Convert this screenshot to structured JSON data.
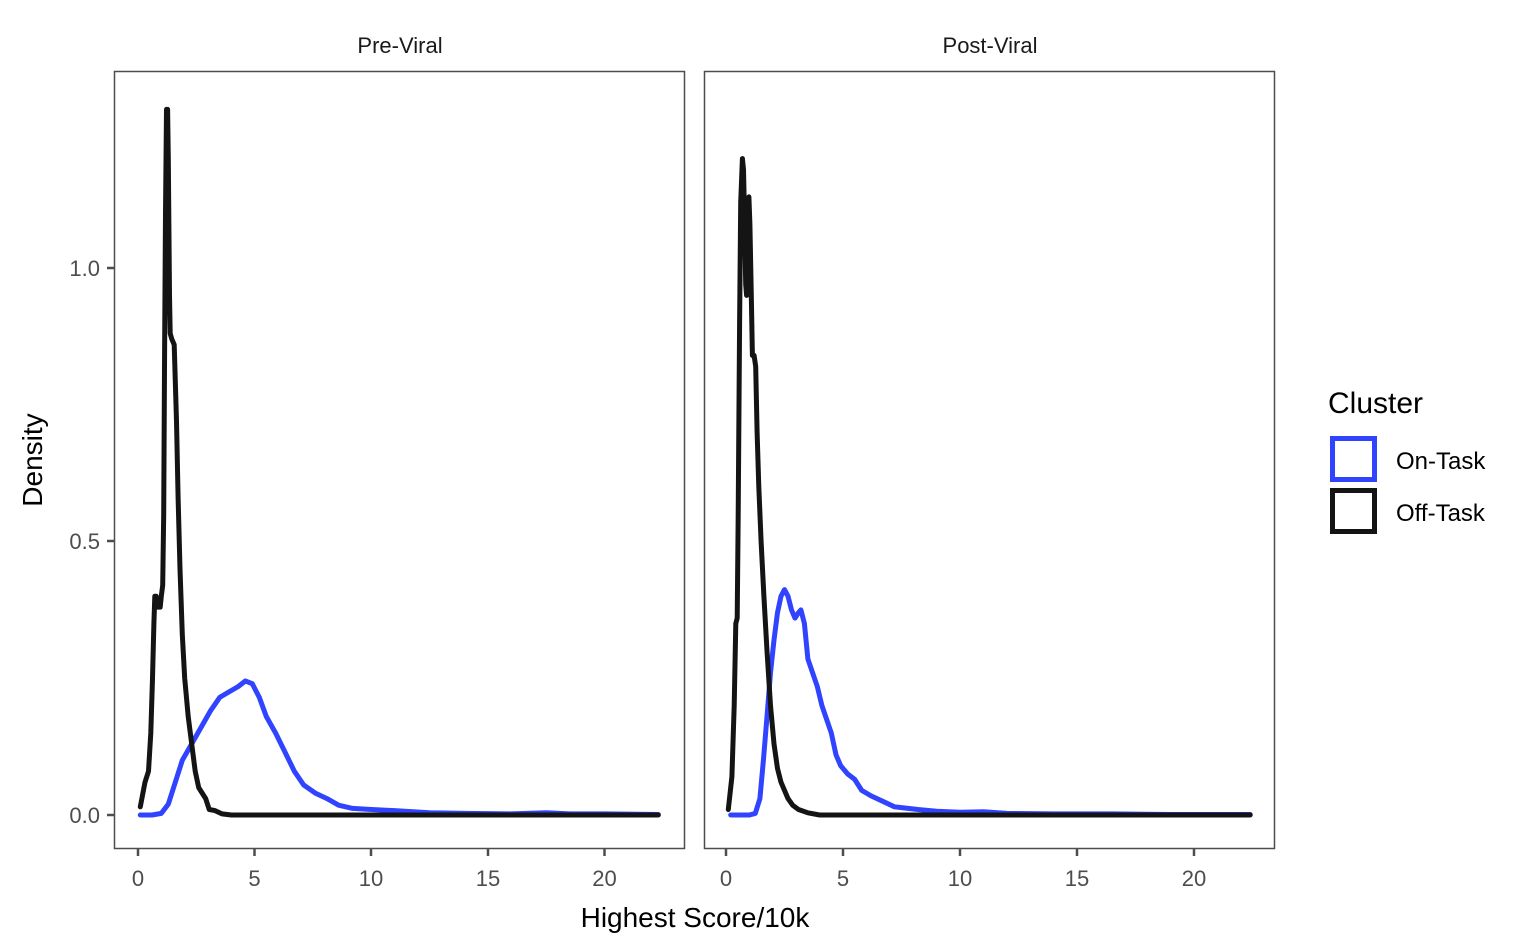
{
  "chart_data": {
    "type": "line",
    "subtype": "density",
    "title": "",
    "xlabel": "Highest Score/10k",
    "ylabel": "Density",
    "xlim": [
      -1,
      23.5
    ],
    "ylim": [
      -0.06,
      1.36
    ],
    "x_ticks": [
      0,
      5,
      10,
      15,
      20
    ],
    "x_tick_labels": [
      "0",
      "5",
      "10",
      "15",
      "20"
    ],
    "y_ticks": [
      0.0,
      0.5,
      1.0
    ],
    "y_tick_labels": [
      "0.0",
      "0.5",
      "1.0"
    ],
    "grid": false,
    "legend": {
      "title": "Cluster",
      "position": "right",
      "entries": [
        {
          "label": "On-Task",
          "color": "#3044ff"
        },
        {
          "label": "Off-Task",
          "color": "#141414"
        }
      ]
    },
    "panels": [
      {
        "label": "Pre-Viral",
        "series": [
          {
            "name": "On-Task",
            "color": "#3044ff",
            "points": [
              [
                0.1,
                0.0
              ],
              [
                0.6,
                0.0
              ],
              [
                1.0,
                0.003
              ],
              [
                1.3,
                0.02
              ],
              [
                1.6,
                0.06
              ],
              [
                1.9,
                0.1
              ],
              [
                2.3,
                0.13
              ],
              [
                2.7,
                0.16
              ],
              [
                3.1,
                0.19
              ],
              [
                3.5,
                0.215
              ],
              [
                3.9,
                0.225
              ],
              [
                4.3,
                0.235
              ],
              [
                4.6,
                0.245
              ],
              [
                4.9,
                0.24
              ],
              [
                5.2,
                0.215
              ],
              [
                5.5,
                0.18
              ],
              [
                5.9,
                0.15
              ],
              [
                6.3,
                0.115
              ],
              [
                6.7,
                0.08
              ],
              [
                7.1,
                0.055
              ],
              [
                7.6,
                0.04
              ],
              [
                8.1,
                0.03
              ],
              [
                8.6,
                0.018
              ],
              [
                9.2,
                0.012
              ],
              [
                10.0,
                0.01
              ],
              [
                11.0,
                0.008
              ],
              [
                12.5,
                0.004
              ],
              [
                14.0,
                0.003
              ],
              [
                16.0,
                0.002
              ],
              [
                17.5,
                0.004
              ],
              [
                18.5,
                0.002
              ],
              [
                20.0,
                0.002
              ],
              [
                22.3,
                0.001
              ]
            ]
          },
          {
            "name": "Off-Task",
            "color": "#141414",
            "points": [
              [
                0.1,
                0.015
              ],
              [
                0.3,
                0.06
              ],
              [
                0.45,
                0.08
              ],
              [
                0.55,
                0.15
              ],
              [
                0.62,
                0.25
              ],
              [
                0.68,
                0.35
              ],
              [
                0.72,
                0.4
              ],
              [
                0.78,
                0.4
              ],
              [
                0.85,
                0.38
              ],
              [
                0.95,
                0.38
              ],
              [
                1.0,
                0.4
              ],
              [
                1.06,
                0.42
              ],
              [
                1.1,
                0.55
              ],
              [
                1.14,
                0.85
              ],
              [
                1.18,
                1.1
              ],
              [
                1.22,
                1.29
              ],
              [
                1.27,
                1.29
              ],
              [
                1.3,
                1.2
              ],
              [
                1.35,
                0.95
              ],
              [
                1.38,
                0.88
              ],
              [
                1.45,
                0.87
              ],
              [
                1.55,
                0.86
              ],
              [
                1.65,
                0.72
              ],
              [
                1.72,
                0.58
              ],
              [
                1.8,
                0.45
              ],
              [
                1.9,
                0.33
              ],
              [
                2.0,
                0.25
              ],
              [
                2.15,
                0.18
              ],
              [
                2.3,
                0.13
              ],
              [
                2.45,
                0.08
              ],
              [
                2.6,
                0.05
              ],
              [
                2.75,
                0.04
              ],
              [
                2.9,
                0.03
              ],
              [
                3.05,
                0.01
              ],
              [
                3.3,
                0.008
              ],
              [
                3.6,
                0.002
              ],
              [
                4.0,
                0.0
              ],
              [
                8.0,
                0.0
              ],
              [
                14.0,
                0.0
              ],
              [
                22.3,
                0.0
              ]
            ]
          }
        ]
      },
      {
        "label": "Post-Viral",
        "series": [
          {
            "name": "On-Task",
            "color": "#3044ff",
            "points": [
              [
                0.2,
                0.0
              ],
              [
                1.0,
                0.0
              ],
              [
                1.25,
                0.003
              ],
              [
                1.45,
                0.03
              ],
              [
                1.6,
                0.1
              ],
              [
                1.75,
                0.18
              ],
              [
                1.9,
                0.26
              ],
              [
                2.05,
                0.32
              ],
              [
                2.2,
                0.37
              ],
              [
                2.35,
                0.4
              ],
              [
                2.5,
                0.412
              ],
              [
                2.65,
                0.4
              ],
              [
                2.8,
                0.375
              ],
              [
                2.95,
                0.36
              ],
              [
                3.1,
                0.37
              ],
              [
                3.2,
                0.375
              ],
              [
                3.35,
                0.35
              ],
              [
                3.5,
                0.285
              ],
              [
                3.7,
                0.26
              ],
              [
                3.9,
                0.235
              ],
              [
                4.1,
                0.2
              ],
              [
                4.3,
                0.175
              ],
              [
                4.5,
                0.15
              ],
              [
                4.7,
                0.11
              ],
              [
                4.9,
                0.09
              ],
              [
                5.2,
                0.075
              ],
              [
                5.5,
                0.065
              ],
              [
                5.8,
                0.045
              ],
              [
                6.2,
                0.035
              ],
              [
                6.7,
                0.025
              ],
              [
                7.2,
                0.015
              ],
              [
                7.6,
                0.013
              ],
              [
                8.2,
                0.01
              ],
              [
                9.0,
                0.007
              ],
              [
                10.0,
                0.005
              ],
              [
                11.0,
                0.006
              ],
              [
                12.0,
                0.003
              ],
              [
                14.0,
                0.002
              ],
              [
                16.5,
                0.002
              ],
              [
                19.0,
                0.001
              ],
              [
                22.4,
                0.001
              ]
            ]
          },
          {
            "name": "Off-Task",
            "color": "#141414",
            "points": [
              [
                0.1,
                0.01
              ],
              [
                0.25,
                0.07
              ],
              [
                0.35,
                0.2
              ],
              [
                0.42,
                0.35
              ],
              [
                0.48,
                0.36
              ],
              [
                0.52,
                0.55
              ],
              [
                0.58,
                0.9
              ],
              [
                0.63,
                1.12
              ],
              [
                0.7,
                1.2
              ],
              [
                0.75,
                1.18
              ],
              [
                0.8,
                1.08
              ],
              [
                0.84,
                0.97
              ],
              [
                0.88,
                0.95
              ],
              [
                0.93,
                1.0
              ],
              [
                0.98,
                1.13
              ],
              [
                1.02,
                1.08
              ],
              [
                1.08,
                0.95
              ],
              [
                1.13,
                0.84
              ],
              [
                1.2,
                0.84
              ],
              [
                1.27,
                0.82
              ],
              [
                1.33,
                0.7
              ],
              [
                1.4,
                0.6
              ],
              [
                1.5,
                0.5
              ],
              [
                1.62,
                0.4
              ],
              [
                1.75,
                0.3
              ],
              [
                1.9,
                0.2
              ],
              [
                2.05,
                0.13
              ],
              [
                2.2,
                0.085
              ],
              [
                2.35,
                0.06
              ],
              [
                2.5,
                0.045
              ],
              [
                2.65,
                0.03
              ],
              [
                2.85,
                0.018
              ],
              [
                3.1,
                0.01
              ],
              [
                3.5,
                0.004
              ],
              [
                4.0,
                0.0
              ],
              [
                8.0,
                0.0
              ],
              [
                15.0,
                0.0
              ],
              [
                22.4,
                0.0
              ]
            ]
          }
        ]
      }
    ]
  },
  "labels": {
    "panel_left": "Pre-Viral",
    "panel_right": "Post-Viral",
    "x_axis_title": "Highest Score/10k",
    "y_axis_title": "Density",
    "legend_title": "Cluster",
    "legend_on_task": "On-Task",
    "legend_off_task": "Off-Task",
    "y_tick_0": "0.0",
    "y_tick_1": "0.5",
    "y_tick_2": "1.0",
    "x_tick_0": "0",
    "x_tick_1": "5",
    "x_tick_2": "10",
    "x_tick_3": "15",
    "x_tick_4": "20"
  },
  "colors": {
    "on_task": "#3044ff",
    "off_task": "#141414",
    "axis": "#4d4d4d"
  }
}
